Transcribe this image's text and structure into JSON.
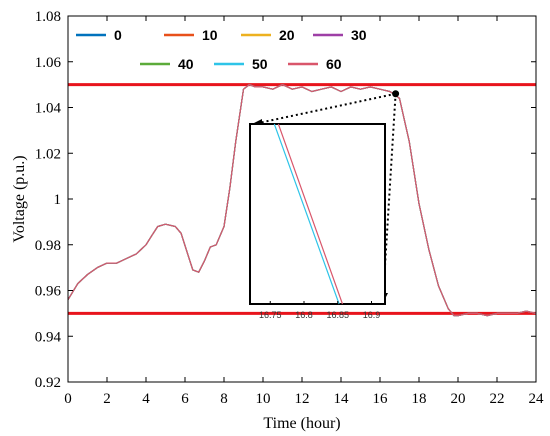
{
  "chart_data": {
    "type": "line",
    "title": "",
    "xlabel": "Time (hour)",
    "ylabel": "Voltage  (p.u.)",
    "xlim": [
      0,
      24
    ],
    "ylim": [
      0.92,
      1.08
    ],
    "xticks": [
      "0",
      "2",
      "4",
      "6",
      "8",
      "10",
      "12",
      "14",
      "16",
      "18",
      "20",
      "22",
      "24"
    ],
    "yticks": [
      "0.92",
      "0.94",
      "0.96",
      "0.98",
      "1",
      "1.02",
      "1.04",
      "1.06",
      "1.08"
    ],
    "grid": false,
    "legend_position": "top-left",
    "limit_lines": [
      {
        "y": 1.05,
        "color": "#e8141c"
      },
      {
        "y": 0.95,
        "color": "#e8141c"
      }
    ],
    "series": [
      {
        "name": "0",
        "color": "#0072bd"
      },
      {
        "name": "10",
        "color": "#e8501a"
      },
      {
        "name": "20",
        "color": "#edb120"
      },
      {
        "name": "30",
        "color": "#9e3fa6"
      },
      {
        "name": "40",
        "color": "#5cab3a"
      },
      {
        "name": "50",
        "color": "#2ec4e8"
      },
      {
        "name": "60",
        "color": "#d9566b"
      }
    ],
    "profile": {
      "x": [
        0,
        0.5,
        1,
        1.5,
        2,
        2.5,
        3,
        3.5,
        4,
        4.3,
        4.6,
        5,
        5.5,
        5.8,
        6.1,
        6.4,
        6.7,
        7,
        7.3,
        7.6,
        8,
        8.3,
        8.6,
        9,
        9.3,
        9.6,
        10,
        10.5,
        11,
        11.5,
        12,
        12.5,
        13,
        13.5,
        14,
        14.5,
        15,
        15.5,
        16,
        16.5,
        16.7,
        17,
        17.5,
        18,
        18.5,
        19,
        19.5,
        19.8,
        20,
        20.5,
        21,
        21.5,
        22,
        22.5,
        23,
        23.5,
        24
      ],
      "y": [
        0.956,
        0.963,
        0.967,
        0.97,
        0.972,
        0.972,
        0.974,
        0.976,
        0.98,
        0.984,
        0.988,
        0.989,
        0.988,
        0.985,
        0.977,
        0.969,
        0.968,
        0.973,
        0.979,
        0.98,
        0.988,
        1.005,
        1.025,
        1.048,
        1.05,
        1.049,
        1.049,
        1.048,
        1.05,
        1.048,
        1.049,
        1.047,
        1.048,
        1.049,
        1.047,
        1.049,
        1.048,
        1.049,
        1.048,
        1.047,
        1.046,
        1.044,
        1.025,
        0.998,
        0.978,
        0.962,
        0.952,
        0.949,
        0.949,
        0.95,
        0.95,
        0.949,
        0.95,
        0.95,
        0.95,
        0.951,
        0.95
      ]
    },
    "zoom_marker": {
      "x": 16.8,
      "y": 1.046
    },
    "inset": {
      "xlim": [
        16.72,
        16.92
      ],
      "xticks": [
        "16.75",
        "16.8",
        "16.85",
        "16.9"
      ],
      "series_lines": [
        {
          "series": "50",
          "x": [
            16.756,
            16.852
          ],
          "y_frac": [
            0.0,
            1.0
          ]
        },
        {
          "series": "60",
          "x": [
            16.762,
            16.857
          ],
          "y_frac": [
            0.0,
            1.0
          ]
        }
      ]
    }
  }
}
